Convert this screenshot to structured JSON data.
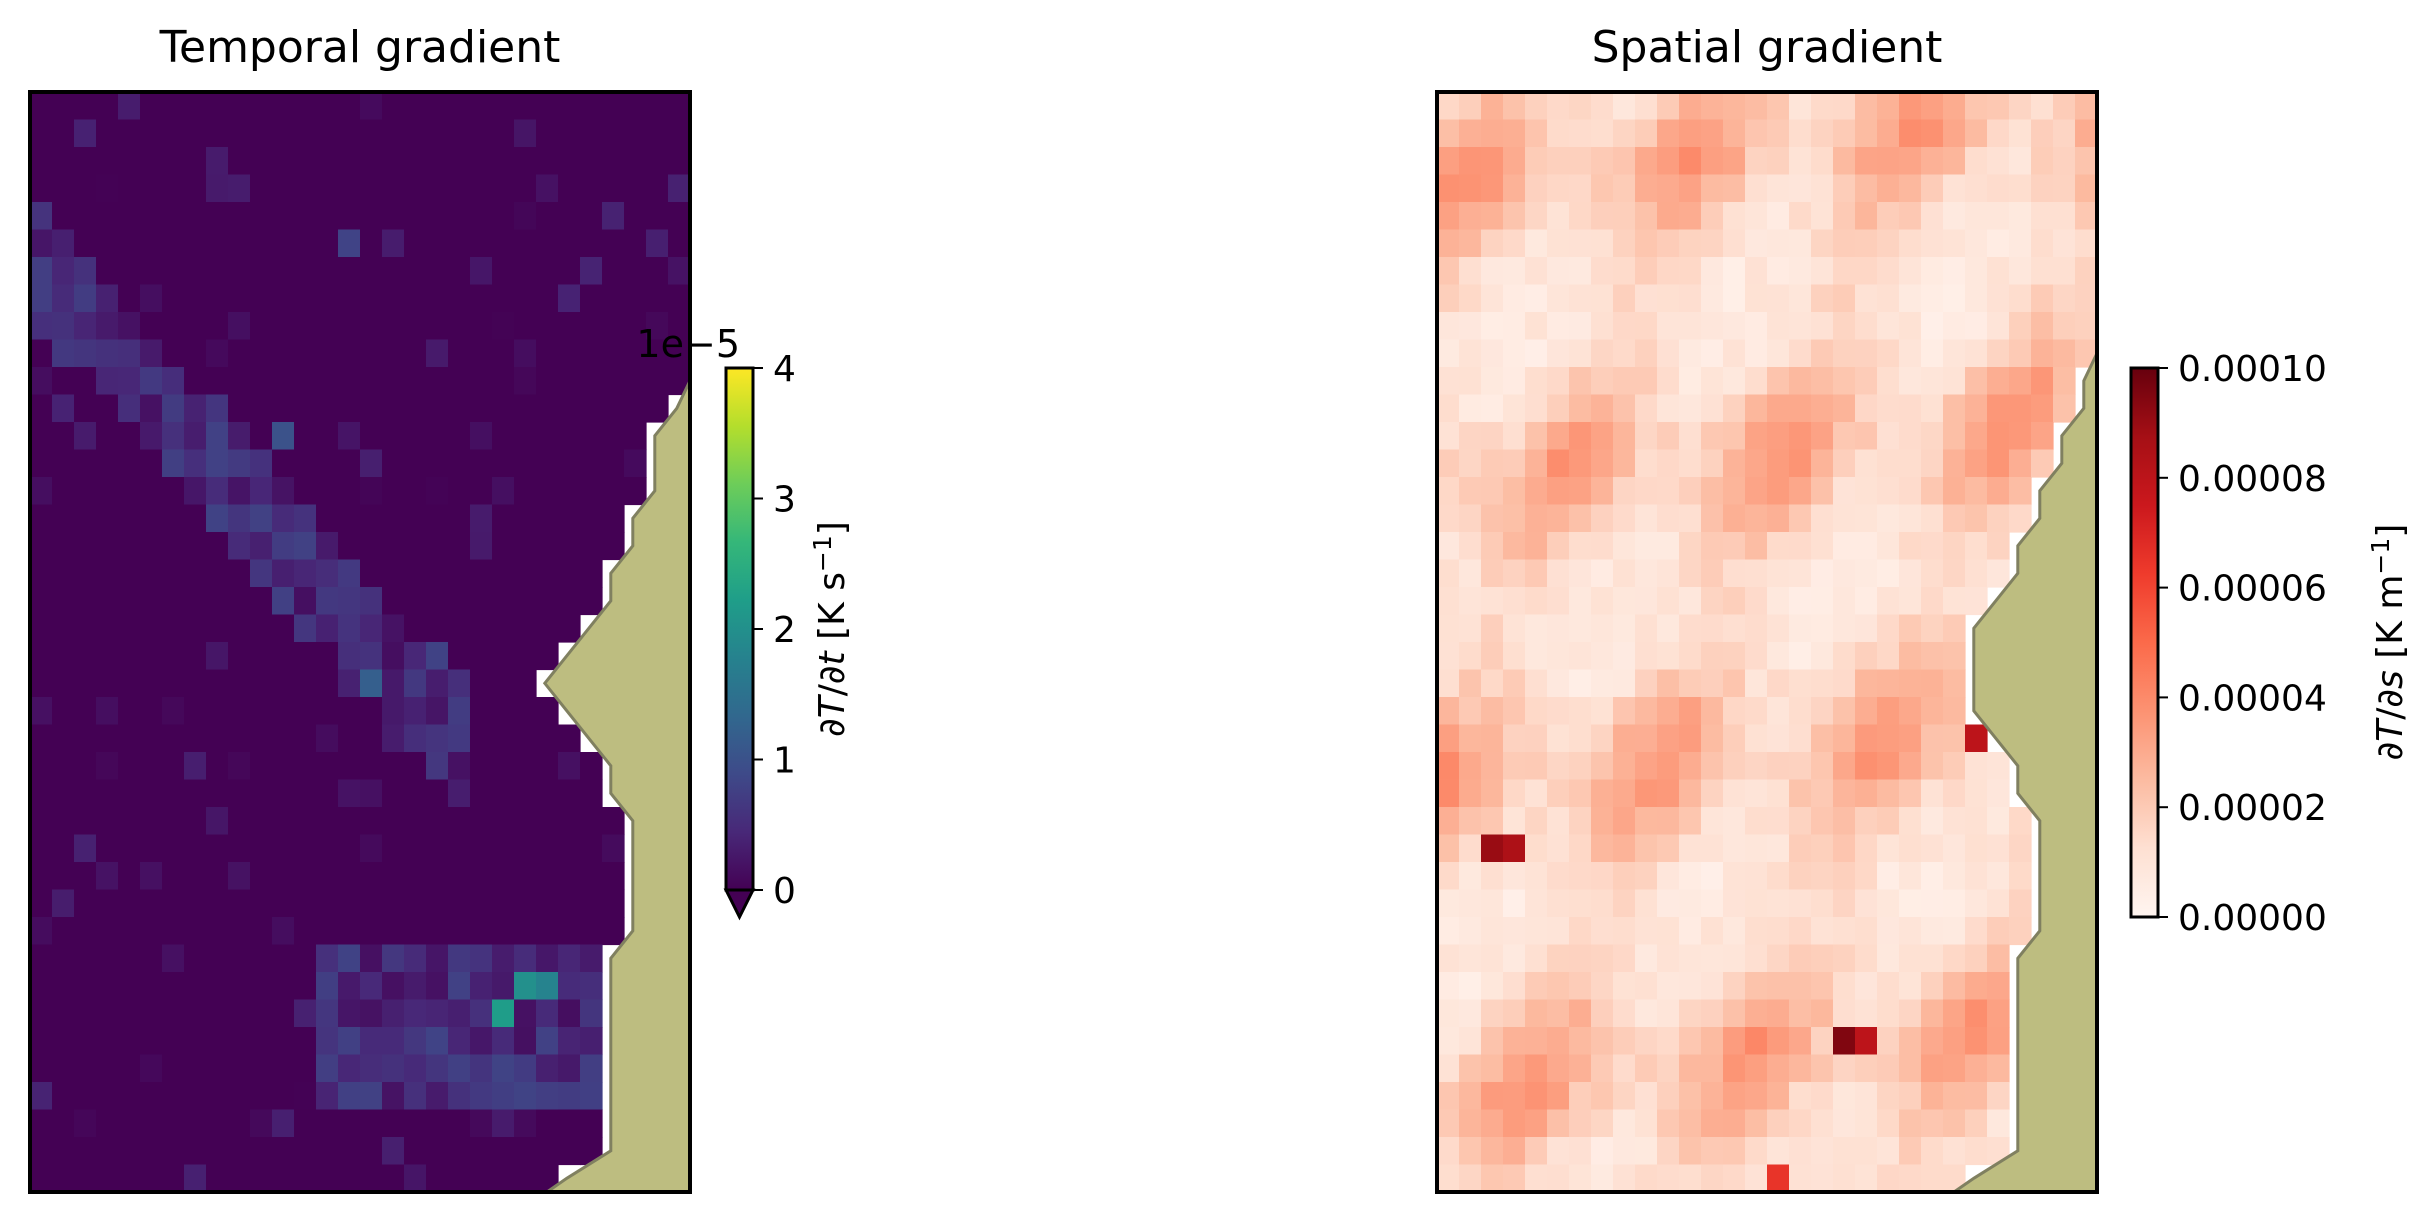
{
  "chart_data": [
    {
      "type": "heatmap",
      "title": "Temporal gradient",
      "colormap": "viridis",
      "colorbar": {
        "label": "∂T/∂t [K s⁻¹]",
        "label_parts": [
          "∂",
          "T",
          "/∂",
          "t",
          " [K s",
          "−1",
          "]"
        ],
        "scale_text": "1e−5",
        "ticks": [
          "0",
          "1",
          "2",
          "3",
          "4"
        ],
        "range": [
          0,
          4e-05
        ],
        "extend": "min"
      },
      "grid": {
        "rows": 40,
        "cols": 30
      },
      "land_color": "#bdbd80",
      "coast_color": "#808060",
      "land_mask_start_col": [
        30,
        30,
        30,
        30,
        30,
        30,
        30,
        30,
        30,
        30,
        30,
        29,
        28,
        28,
        28,
        27,
        27,
        26,
        26,
        25,
        24,
        23,
        24,
        25,
        26,
        26,
        27,
        27,
        27,
        27,
        27,
        26,
        26,
        26,
        26,
        26,
        26,
        26,
        26,
        24
      ],
      "hotspots": [
        {
          "row": 33,
          "col": 21,
          "value": 2.2e-05
        },
        {
          "row": 32,
          "col": 22,
          "value": 2e-05
        },
        {
          "row": 32,
          "col": 23,
          "value": 1.8e-05
        },
        {
          "row": 21,
          "col": 15,
          "value": 1.2e-05
        },
        {
          "row": 12,
          "col": 11,
          "value": 1e-05
        },
        {
          "row": 5,
          "col": 14,
          "value": 8e-06
        }
      ]
    },
    {
      "type": "heatmap",
      "title": "Spatial gradient",
      "colormap": "Reds",
      "colorbar": {
        "label": "∂T/∂s [K m⁻¹]",
        "label_parts": [
          "∂",
          "T",
          "/∂",
          "s",
          " [K m",
          "−1",
          "]"
        ],
        "ticks": [
          "0.00000",
          "0.00002",
          "0.00004",
          "0.00006",
          "0.00008",
          "0.00010"
        ],
        "range": [
          0,
          0.0001
        ]
      },
      "grid": {
        "rows": 40,
        "cols": 30
      },
      "land_color": "#bdbd80",
      "coast_color": "#808060",
      "land_mask_start_col": [
        30,
        30,
        30,
        30,
        30,
        30,
        30,
        30,
        30,
        30,
        29,
        29,
        28,
        28,
        27,
        27,
        26,
        26,
        25,
        24,
        24,
        24,
        24,
        25,
        26,
        26,
        27,
        27,
        27,
        27,
        27,
        26,
        26,
        26,
        26,
        26,
        26,
        26,
        26,
        24
      ],
      "hotspots": [
        {
          "row": 27,
          "col": 2,
          "value": 9e-05
        },
        {
          "row": 27,
          "col": 3,
          "value": 8.5e-05
        },
        {
          "row": 34,
          "col": 18,
          "value": 9.5e-05
        },
        {
          "row": 34,
          "col": 19,
          "value": 8e-05
        },
        {
          "row": 23,
          "col": 24,
          "value": 8e-05
        },
        {
          "row": 39,
          "col": 15,
          "value": 6.5e-05
        }
      ]
    }
  ]
}
